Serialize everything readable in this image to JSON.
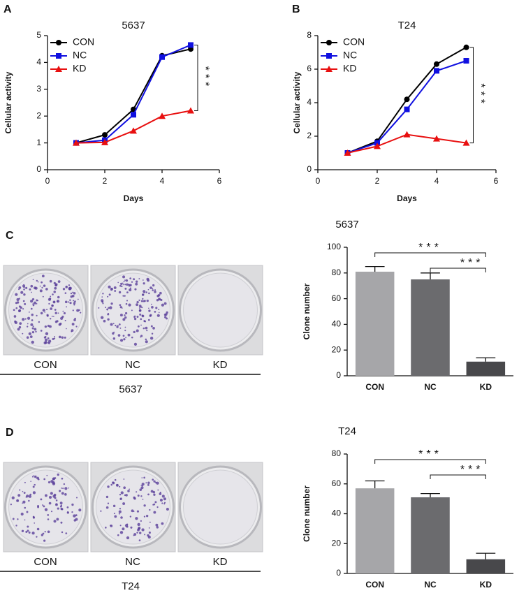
{
  "chart_data": [
    {
      "type": "line",
      "panel": "A",
      "title": "5637",
      "x_label": "Days",
      "y_label": "Cellular activity",
      "x": [
        1,
        2,
        3,
        4,
        5
      ],
      "xlim": [
        0,
        6
      ],
      "xticks": [
        0,
        2,
        4,
        6
      ],
      "ylim": [
        0,
        5
      ],
      "yticks": [
        0,
        1,
        2,
        3,
        4,
        5
      ],
      "legend": "upper left",
      "annotations": [
        "***"
      ],
      "series": [
        {
          "name": "CON",
          "color": "#000000",
          "marker": "circle",
          "values": [
            1,
            1.3,
            2.25,
            4.25,
            4.5
          ]
        },
        {
          "name": "NC",
          "color": "#1010e0",
          "marker": "square",
          "values": [
            1,
            1.1,
            2.05,
            4.2,
            4.65
          ]
        },
        {
          "name": "KD",
          "color": "#e81010",
          "marker": "triangle",
          "values": [
            1,
            1.02,
            1.45,
            2.0,
            2.2
          ]
        }
      ]
    },
    {
      "type": "line",
      "panel": "B",
      "title": "T24",
      "x_label": "Days",
      "y_label": "Cellular activity",
      "x": [
        1,
        2,
        3,
        4,
        5
      ],
      "xlim": [
        0,
        6
      ],
      "xticks": [
        0,
        2,
        4,
        6
      ],
      "ylim": [
        0,
        8
      ],
      "yticks": [
        0,
        2,
        4,
        6,
        8
      ],
      "legend": "upper left",
      "annotations": [
        "***"
      ],
      "series": [
        {
          "name": "CON",
          "color": "#000000",
          "marker": "circle",
          "values": [
            1,
            1.7,
            4.2,
            6.3,
            7.3
          ]
        },
        {
          "name": "NC",
          "color": "#1010e0",
          "marker": "square",
          "values": [
            1,
            1.6,
            3.6,
            5.9,
            6.5
          ]
        },
        {
          "name": "KD",
          "color": "#e81010",
          "marker": "triangle",
          "values": [
            1,
            1.4,
            2.1,
            1.85,
            1.6
          ]
        }
      ]
    },
    {
      "type": "bar",
      "title": "5637",
      "y_label": "Clone number",
      "categories": [
        "CON",
        "NC",
        "KD"
      ],
      "values": [
        81,
        75,
        11
      ],
      "errors": [
        4,
        5,
        3
      ],
      "colors": [
        "#a6a6a9",
        "#6b6b6e",
        "#48484b"
      ],
      "ylim": [
        0,
        100
      ],
      "yticks": [
        0,
        20,
        40,
        60,
        80,
        100
      ],
      "annotations": [
        "***",
        "***"
      ]
    },
    {
      "type": "bar",
      "title": "T24",
      "y_label": "Clone number",
      "categories": [
        "CON",
        "NC",
        "KD"
      ],
      "values": [
        57,
        51,
        9.5
      ],
      "errors": [
        5,
        2.5,
        4
      ],
      "colors": [
        "#a6a6a9",
        "#6b6b6e",
        "#48484b"
      ],
      "ylim": [
        0,
        80
      ],
      "yticks": [
        0,
        20,
        40,
        60,
        80
      ],
      "annotations": [
        "***",
        "***"
      ]
    }
  ],
  "photos": [
    {
      "letter": "C",
      "labels": [
        "CON",
        "NC",
        "KD"
      ],
      "cell_line": "5637"
    },
    {
      "letter": "D",
      "labels": [
        "CON",
        "NC",
        "KD"
      ],
      "cell_line": "T24"
    }
  ]
}
